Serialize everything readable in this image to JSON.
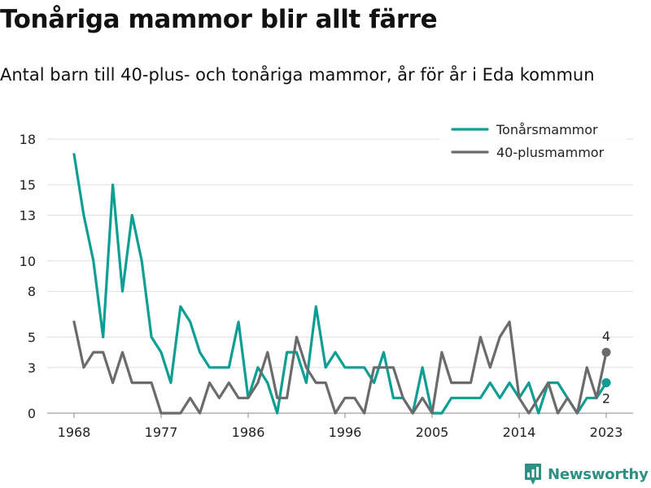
{
  "title": "Tonåriga mammor blir allt färre",
  "subtitle": "Antal barn till 40-plus- och tonåriga mammor, år för år i Eda kommun",
  "brand": "Newsworthy",
  "chart_data": {
    "type": "line",
    "x": [
      1968,
      1969,
      1970,
      1971,
      1972,
      1973,
      1974,
      1975,
      1976,
      1977,
      1978,
      1979,
      1980,
      1981,
      1982,
      1983,
      1984,
      1985,
      1986,
      1987,
      1988,
      1989,
      1990,
      1991,
      1992,
      1993,
      1994,
      1995,
      1996,
      1997,
      1998,
      1999,
      2000,
      2001,
      2002,
      2003,
      2004,
      2005,
      2006,
      2007,
      2008,
      2009,
      2010,
      2011,
      2012,
      2013,
      2014,
      2015,
      2016,
      2017,
      2018,
      2019,
      2020,
      2021,
      2022,
      2023
    ],
    "series": [
      {
        "name": "Tonårsmammor",
        "color": "#0d9e93",
        "values": [
          17,
          13,
          10,
          5,
          15,
          8,
          13,
          10,
          5,
          4,
          2,
          7,
          6,
          4,
          3,
          3,
          3,
          6,
          1,
          3,
          2,
          0,
          4,
          4,
          2,
          7,
          3,
          4,
          3,
          3,
          3,
          2,
          4,
          1,
          1,
          0,
          3,
          0,
          0,
          1,
          1,
          1,
          1,
          2,
          1,
          2,
          1,
          2,
          0,
          2,
          2,
          1,
          0,
          1,
          1,
          2
        ]
      },
      {
        "name": "40-plusmammor",
        "color": "#6b6b6e",
        "values": [
          6,
          3,
          4,
          4,
          2,
          4,
          2,
          2,
          2,
          0,
          0,
          0,
          1,
          0,
          2,
          1,
          2,
          1,
          1,
          2,
          4,
          1,
          1,
          5,
          3,
          2,
          2,
          0,
          1,
          1,
          0,
          3,
          3,
          3,
          1,
          0,
          1,
          0,
          4,
          2,
          2,
          2,
          5,
          3,
          5,
          6,
          1,
          0,
          1,
          2,
          0,
          1,
          0,
          3,
          1,
          4
        ]
      }
    ],
    "end_labels": [
      "2",
      "4"
    ],
    "xticks": [
      1968,
      1977,
      1986,
      1996,
      2005,
      2014,
      2023
    ],
    "yticks": [
      0,
      3,
      5,
      8,
      10,
      13,
      15,
      18
    ],
    "xlim": [
      1968,
      2023
    ],
    "ylim": [
      0,
      18
    ],
    "grid": true,
    "legend_position": "top-right"
  }
}
